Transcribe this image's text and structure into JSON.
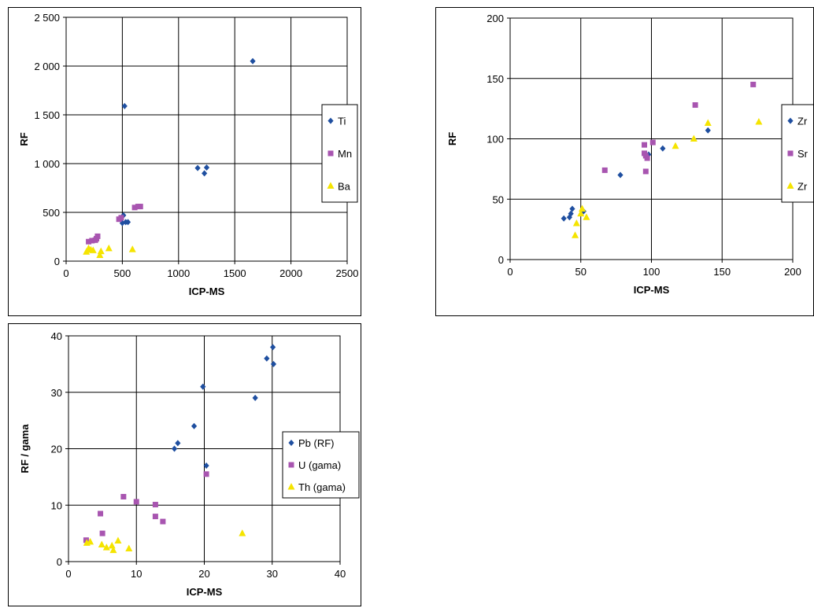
{
  "colors": {
    "series1": "#1f4fa0",
    "series2": "#a855b0",
    "series3": "#f5e400",
    "grid": "#000000"
  },
  "chart_data": [
    {
      "type": "scatter",
      "xlabel": "ICP-MS",
      "ylabel": "RF",
      "xlim": [
        0,
        2500
      ],
      "ylim": [
        0,
        2500
      ],
      "xticks": [
        "0",
        "500",
        "1000",
        "1500",
        "2000",
        "2500"
      ],
      "yticks": [
        "0",
        "500",
        "1 000",
        "1 500",
        "2 000",
        "2 500"
      ],
      "grid": true,
      "legend_position": "right",
      "series": [
        {
          "name": "Ti",
          "marker": "diamond",
          "color": "#1f4fa0",
          "points": [
            [
              520,
              1590
            ],
            [
              1660,
              2050
            ],
            [
              1170,
              955
            ],
            [
              1250,
              960
            ],
            [
              1230,
              900
            ],
            [
              510,
              470
            ],
            [
              500,
              390
            ],
            [
              530,
              400
            ],
            [
              550,
              400
            ]
          ]
        },
        {
          "name": "Mn",
          "marker": "square",
          "color": "#a855b0",
          "points": [
            [
              200,
              200
            ],
            [
              230,
              210
            ],
            [
              260,
              215
            ],
            [
              270,
              230
            ],
            [
              280,
              255
            ],
            [
              470,
              430
            ],
            [
              490,
              445
            ],
            [
              610,
              550
            ],
            [
              640,
              560
            ],
            [
              660,
              560
            ]
          ]
        },
        {
          "name": "Ba",
          "marker": "triangle",
          "color": "#f5e400",
          "points": [
            [
              180,
              95
            ],
            [
              200,
              130
            ],
            [
              220,
              115
            ],
            [
              240,
              110
            ],
            [
              300,
              60
            ],
            [
              310,
              100
            ],
            [
              380,
              130
            ],
            [
              590,
              120
            ]
          ]
        }
      ]
    },
    {
      "type": "scatter",
      "xlabel": "ICP-MS",
      "ylabel": "RF",
      "xlim": [
        0,
        200
      ],
      "ylim": [
        0,
        200
      ],
      "xticks": [
        "0",
        "50",
        "100",
        "150",
        "200"
      ],
      "yticks": [
        "0",
        "50",
        "100",
        "150",
        "200"
      ],
      "grid": true,
      "legend_position": "right",
      "series": [
        {
          "name": "Zr",
          "marker": "diamond",
          "color": "#1f4fa0",
          "points": [
            [
              38,
              34
            ],
            [
              42,
              35
            ],
            [
              43,
              38
            ],
            [
              44,
              42
            ],
            [
              52,
              40
            ],
            [
              78,
              70
            ],
            [
              98,
              87
            ],
            [
              108,
              92
            ],
            [
              140,
              107
            ]
          ]
        },
        {
          "name": "Sr",
          "marker": "square",
          "color": "#a855b0",
          "points": [
            [
              67,
              74
            ],
            [
              95,
              95
            ],
            [
              95,
              88
            ],
            [
              96,
              86
            ],
            [
              97,
              84
            ],
            [
              96,
              73
            ],
            [
              101,
              97
            ],
            [
              131,
              128
            ],
            [
              172,
              145
            ]
          ]
        },
        {
          "name": "Zr",
          "marker": "triangle",
          "color": "#f5e400",
          "points": [
            [
              46,
              20
            ],
            [
              47,
              30
            ],
            [
              50,
              38
            ],
            [
              51,
              42
            ],
            [
              54,
              35
            ],
            [
              117,
              94
            ],
            [
              130,
              100
            ],
            [
              140,
              113
            ],
            [
              176,
              114
            ]
          ]
        }
      ]
    },
    {
      "type": "scatter",
      "xlabel": "ICP-MS",
      "ylabel": "RF / gama",
      "xlim": [
        0,
        40
      ],
      "ylim": [
        0,
        40
      ],
      "xticks": [
        "0",
        "10",
        "20",
        "30",
        "40"
      ],
      "yticks": [
        "0",
        "10",
        "20",
        "30",
        "40"
      ],
      "grid": true,
      "legend_position": "right",
      "series": [
        {
          "name": "Pb (RF)",
          "marker": "diamond",
          "color": "#1f4fa0",
          "points": [
            [
              19.8,
              31
            ],
            [
              29.2,
              36
            ],
            [
              30.1,
              38
            ],
            [
              30.2,
              35
            ],
            [
              27.5,
              29
            ],
            [
              18.5,
              24
            ],
            [
              16.1,
              21
            ],
            [
              15.6,
              20
            ],
            [
              20.3,
              17
            ]
          ]
        },
        {
          "name": "U (gama)",
          "marker": "square",
          "color": "#a855b0",
          "points": [
            [
              2.6,
              3.8
            ],
            [
              4.7,
              8.5
            ],
            [
              5.0,
              5.0
            ],
            [
              8.1,
              11.5
            ],
            [
              10.0,
              10.6
            ],
            [
              12.8,
              10.1
            ],
            [
              12.8,
              8.0
            ],
            [
              13.9,
              7.1
            ],
            [
              20.3,
              15.5
            ]
          ]
        },
        {
          "name": "Th (gama)",
          "marker": "triangle",
          "color": "#f5e400",
          "points": [
            [
              2.7,
              3.3
            ],
            [
              3.2,
              3.5
            ],
            [
              4.9,
              3.0
            ],
            [
              5.6,
              2.5
            ],
            [
              6.4,
              2.8
            ],
            [
              6.6,
              2.0
            ],
            [
              7.3,
              3.7
            ],
            [
              8.9,
              2.3
            ],
            [
              25.6,
              5.0
            ]
          ]
        }
      ]
    }
  ]
}
